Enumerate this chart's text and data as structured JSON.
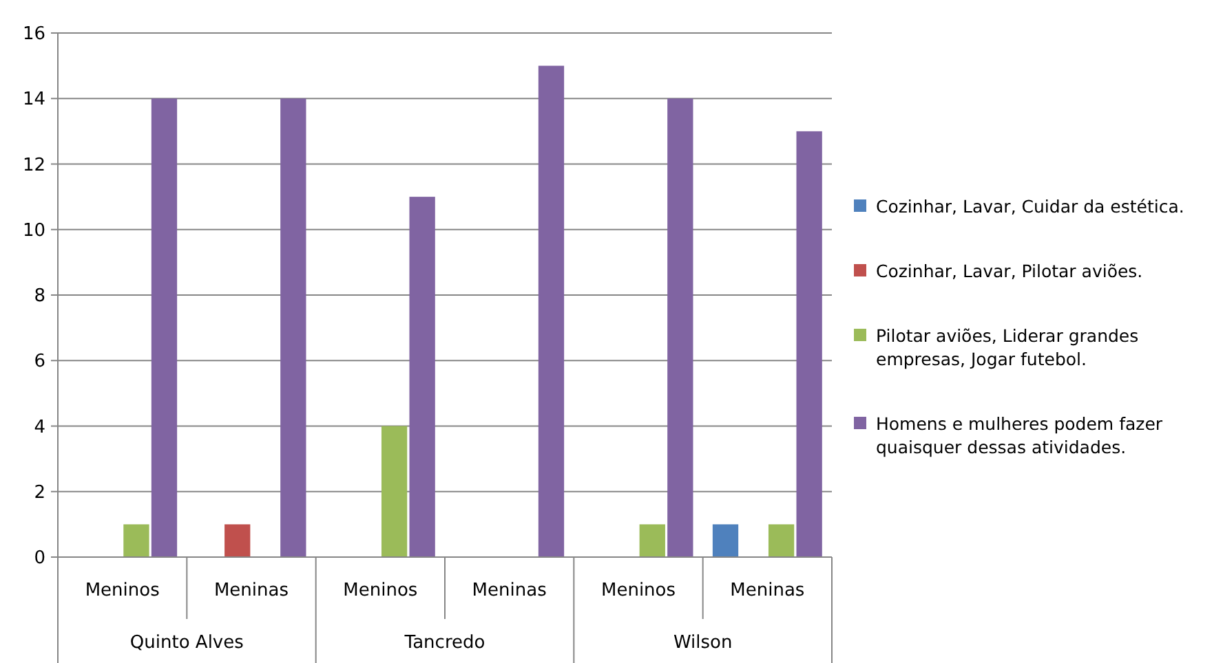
{
  "chart_data": {
    "type": "bar",
    "categories": [
      "Meninos",
      "Meninas",
      "Meninos",
      "Meninas",
      "Meninos",
      "Meninas"
    ],
    "annotations": [
      "Quinto Alves",
      "Tancredo",
      "Wilson"
    ],
    "series": [
      {
        "name": "Cozinhar, Lavar, Cuidar da estética.",
        "color": "#4f81bd",
        "values": [
          null,
          null,
          null,
          null,
          null,
          1
        ]
      },
      {
        "name": "Cozinhar, Lavar, Pilotar aviões.",
        "color": "#c0504d",
        "values": [
          null,
          1,
          null,
          null,
          null,
          null
        ]
      },
      {
        "name": "Pilotar aviões, Liderar grandes empresas, Jogar futebol.",
        "color": "#9bbb59",
        "values": [
          1,
          null,
          4,
          null,
          1,
          1
        ]
      },
      {
        "name": "Homens e mulheres podem fazer quaisquer dessas atividades.",
        "color": "#8064a2",
        "values": [
          14,
          14,
          11,
          15,
          14,
          13
        ]
      }
    ],
    "ylim": [
      0,
      16
    ],
    "yticks": [
      0,
      2,
      4,
      6,
      8,
      10,
      12,
      14,
      16
    ],
    "grid": "y",
    "legend": "right"
  }
}
